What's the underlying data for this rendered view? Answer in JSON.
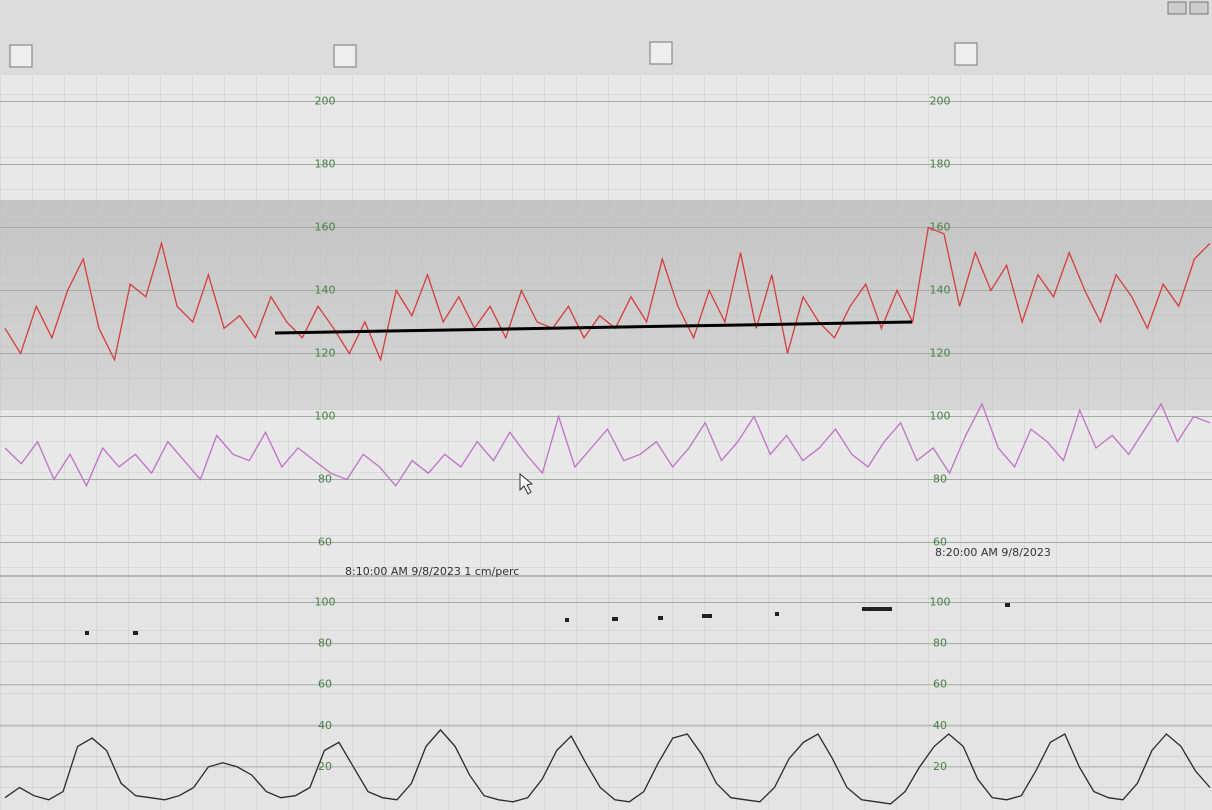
{
  "chart_data": [
    {
      "type": "line",
      "grid": true,
      "ylim": [
        50,
        210
      ],
      "yticks": [
        60,
        80,
        100,
        120,
        140,
        160,
        180,
        200
      ],
      "annotations": [
        "8:10:00 AM 9/8/2023   1 cm/perc",
        "8:20:00 AM 9/8/2023"
      ],
      "series": [
        {
          "color": "#d63c3c",
          "values": [
            128,
            120,
            135,
            125,
            140,
            150,
            128,
            118,
            142,
            138,
            155,
            135,
            130,
            145,
            128,
            132,
            125,
            138,
            130,
            125,
            135,
            128,
            120,
            130,
            118,
            140,
            132,
            145,
            130,
            138,
            128,
            135,
            125,
            140,
            130,
            128,
            135,
            125,
            132,
            128,
            138,
            130,
            150,
            135,
            125,
            140,
            130,
            152,
            128,
            145,
            120,
            138,
            130,
            125,
            135,
            142,
            128,
            140,
            130,
            160,
            158,
            135,
            152,
            140,
            148,
            130,
            145,
            138,
            152,
            140,
            130,
            145,
            138,
            128,
            142,
            135,
            150,
            155
          ]
        },
        {
          "color": "#c071c9",
          "values": [
            90,
            85,
            92,
            80,
            88,
            78,
            90,
            84,
            88,
            82,
            92,
            86,
            80,
            94,
            88,
            86,
            95,
            84,
            90,
            86,
            82,
            80,
            88,
            84,
            78,
            86,
            82,
            88,
            84,
            92,
            86,
            95,
            88,
            82,
            100,
            84,
            90,
            96,
            86,
            88,
            92,
            84,
            90,
            98,
            86,
            92,
            100,
            88,
            94,
            86,
            90,
            96,
            88,
            84,
            92,
            98,
            86,
            90,
            82,
            94,
            104,
            90,
            84,
            96,
            92,
            86,
            102,
            90,
            94,
            88,
            96,
            104,
            92,
            100,
            98
          ]
        }
      ]
    },
    {
      "type": "line",
      "grid": true,
      "ylim": [
        0,
        110
      ],
      "yticks": [
        20,
        40,
        60,
        80,
        100
      ],
      "series": [
        {
          "color": "#2a2a2a",
          "values": [
            5,
            10,
            6,
            4,
            8,
            30,
            34,
            28,
            12,
            6,
            5,
            4,
            6,
            10,
            20,
            22,
            20,
            16,
            8,
            5,
            6,
            10,
            28,
            32,
            20,
            8,
            5,
            4,
            12,
            30,
            38,
            30,
            16,
            6,
            4,
            3,
            5,
            14,
            28,
            35,
            22,
            10,
            4,
            3,
            8,
            22,
            34,
            36,
            26,
            12,
            5,
            4,
            3,
            10,
            24,
            32,
            36,
            24,
            10,
            4,
            3,
            2,
            8,
            20,
            30,
            36,
            30,
            14,
            5,
            4,
            6,
            18,
            32,
            36,
            20,
            8,
            5,
            4,
            12,
            28,
            36,
            30,
            18,
            10
          ]
        }
      ]
    }
  ]
}
